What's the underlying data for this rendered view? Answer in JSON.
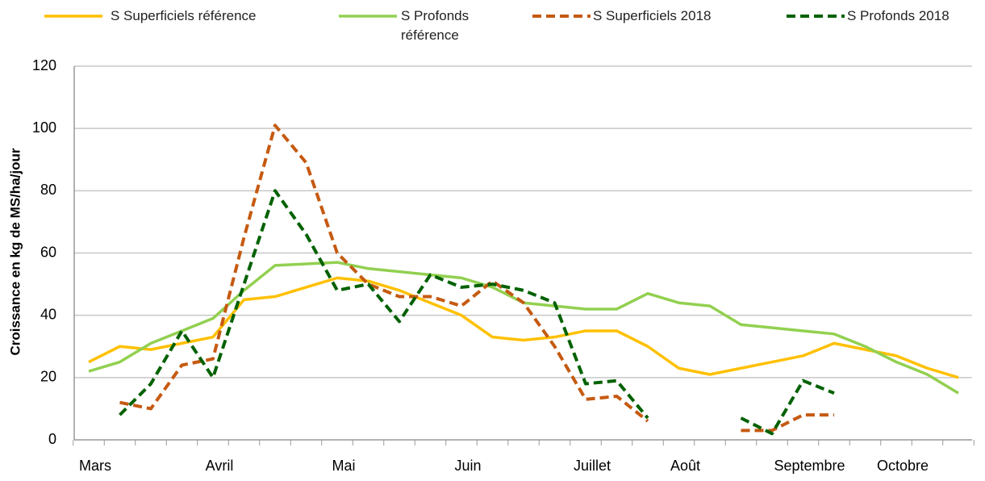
{
  "chart_data": {
    "type": "line",
    "y_label": "Croissance en kg de MS/ha/jour",
    "categories": [
      "Mars",
      null,
      null,
      null,
      "Avril",
      null,
      null,
      null,
      "Mai",
      null,
      null,
      null,
      "Juin",
      null,
      null,
      null,
      "Juillet",
      null,
      null,
      "Août",
      null,
      null,
      null,
      "Septembre",
      null,
      null,
      "Octobre",
      null,
      null
    ],
    "series": [
      {
        "name": "S Superficiels référence",
        "color": "#ffc000",
        "dash": false,
        "values": [
          25,
          30,
          29,
          31,
          33,
          45,
          46,
          49,
          52,
          51,
          48,
          44,
          40,
          33,
          32,
          33,
          35,
          35,
          30,
          23,
          21,
          23,
          25,
          27,
          31,
          29,
          27,
          23,
          20
        ]
      },
      {
        "name": "S Profonds référence",
        "color": "#92d050",
        "dash": false,
        "values": [
          22,
          25,
          31,
          35,
          39,
          48,
          56,
          56.5,
          57,
          55,
          54,
          53,
          52,
          49,
          44,
          43,
          42,
          42,
          47,
          44,
          43,
          37,
          36,
          35,
          34,
          30,
          25,
          21,
          15
        ]
      },
      {
        "name": "S Superficiels 2018",
        "color": "#c55a11",
        "dash": true,
        "values": [
          null,
          12,
          10,
          24,
          26,
          65,
          101,
          89,
          60,
          50,
          46,
          46,
          43,
          51,
          44,
          30,
          13,
          14,
          6,
          null,
          null,
          3,
          3,
          8,
          8,
          null,
          null,
          null,
          null
        ]
      },
      {
        "name": "S Profonds 2018",
        "color": "#006100",
        "dash": true,
        "values": [
          null,
          8,
          18,
          35,
          20,
          50,
          80,
          66,
          48,
          50,
          38,
          53,
          49,
          50,
          48,
          44,
          18,
          19,
          7,
          null,
          null,
          7,
          2,
          19,
          15,
          null,
          null,
          null,
          null
        ]
      }
    ],
    "ylim": [
      0,
      120
    ],
    "yticks": [
      0,
      20,
      40,
      60,
      80,
      100,
      120
    ],
    "grid": true
  }
}
